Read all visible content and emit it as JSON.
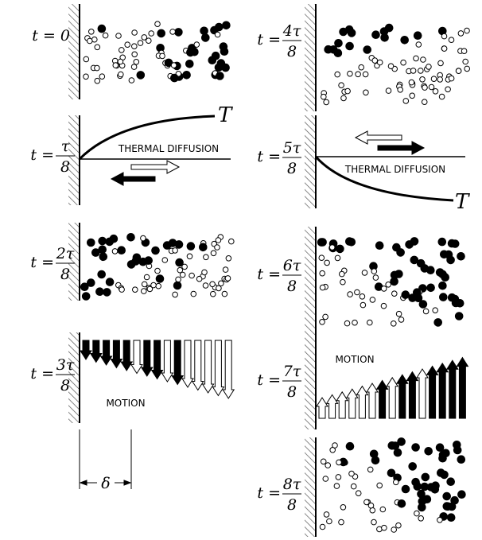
{
  "labels": [
    {
      "text": "t = 0"
    },
    {
      "prefix": "t =",
      "numerator": "τ",
      "denominator": "8"
    },
    {
      "prefix": "t =",
      "numerator": "2τ",
      "denominator": "8"
    },
    {
      "prefix": "t =",
      "numerator": "3τ",
      "denominator": "8"
    },
    {
      "prefix": "t =",
      "numerator": "4τ",
      "denominator": "8"
    },
    {
      "prefix": "t =",
      "numerator": "5τ",
      "denominator": "8"
    },
    {
      "prefix": "t =",
      "numerator": "6τ",
      "denominator": "8"
    },
    {
      "prefix": "t =",
      "numerator": "7τ",
      "denominator": "8"
    },
    {
      "prefix": "t =",
      "numerator": "8τ",
      "denominator": "8"
    }
  ],
  "thermal_diffusion": [
    "THERMAL DIFFUSION",
    "THERMAL DIFFUSION"
  ],
  "temperature": [
    "T",
    "T"
  ],
  "motion": [
    "MOTION",
    "MOTION"
  ],
  "delta": "δ"
}
